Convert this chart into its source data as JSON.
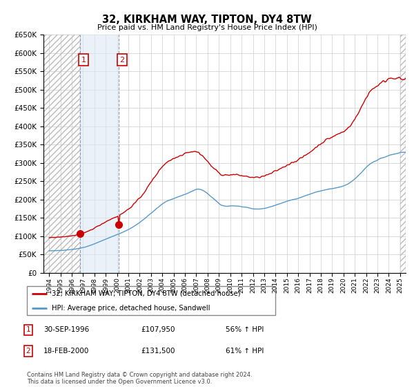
{
  "title": "32, KIRKHAM WAY, TIPTON, DY4 8TW",
  "subtitle": "Price paid vs. HM Land Registry's House Price Index (HPI)",
  "legend_line1": "32, KIRKHAM WAY, TIPTON, DY4 8TW (detached house)",
  "legend_line2": "HPI: Average price, detached house, Sandwell",
  "annotation1_label": "1",
  "annotation1_date": "30-SEP-1996",
  "annotation1_price": "£107,950",
  "annotation1_hpi": "56% ↑ HPI",
  "annotation2_label": "2",
  "annotation2_date": "18-FEB-2000",
  "annotation2_price": "£131,500",
  "annotation2_hpi": "61% ↑ HPI",
  "footnote": "Contains HM Land Registry data © Crown copyright and database right 2024.\nThis data is licensed under the Open Government Licence v3.0.",
  "property_color": "#cc0000",
  "hpi_color": "#5599cc",
  "marker1_x": 1996.75,
  "marker1_y": 107950,
  "marker2_x": 2000.13,
  "marker2_y": 131500,
  "vline1_x": 1996.75,
  "vline2_x": 2000.13,
  "ylim_min": 0,
  "ylim_max": 650000,
  "xlim_min": 1993.5,
  "xlim_max": 2025.5,
  "yticks": [
    0,
    50000,
    100000,
    150000,
    200000,
    250000,
    300000,
    350000,
    400000,
    450000,
    500000,
    550000,
    600000,
    650000
  ],
  "xticks": [
    1994,
    1995,
    1996,
    1997,
    1998,
    1999,
    2000,
    2001,
    2002,
    2003,
    2004,
    2005,
    2006,
    2007,
    2008,
    2009,
    2010,
    2011,
    2012,
    2013,
    2014,
    2015,
    2016,
    2017,
    2018,
    2019,
    2020,
    2021,
    2022,
    2023,
    2024,
    2025
  ],
  "shade_color": "#dce9f5"
}
